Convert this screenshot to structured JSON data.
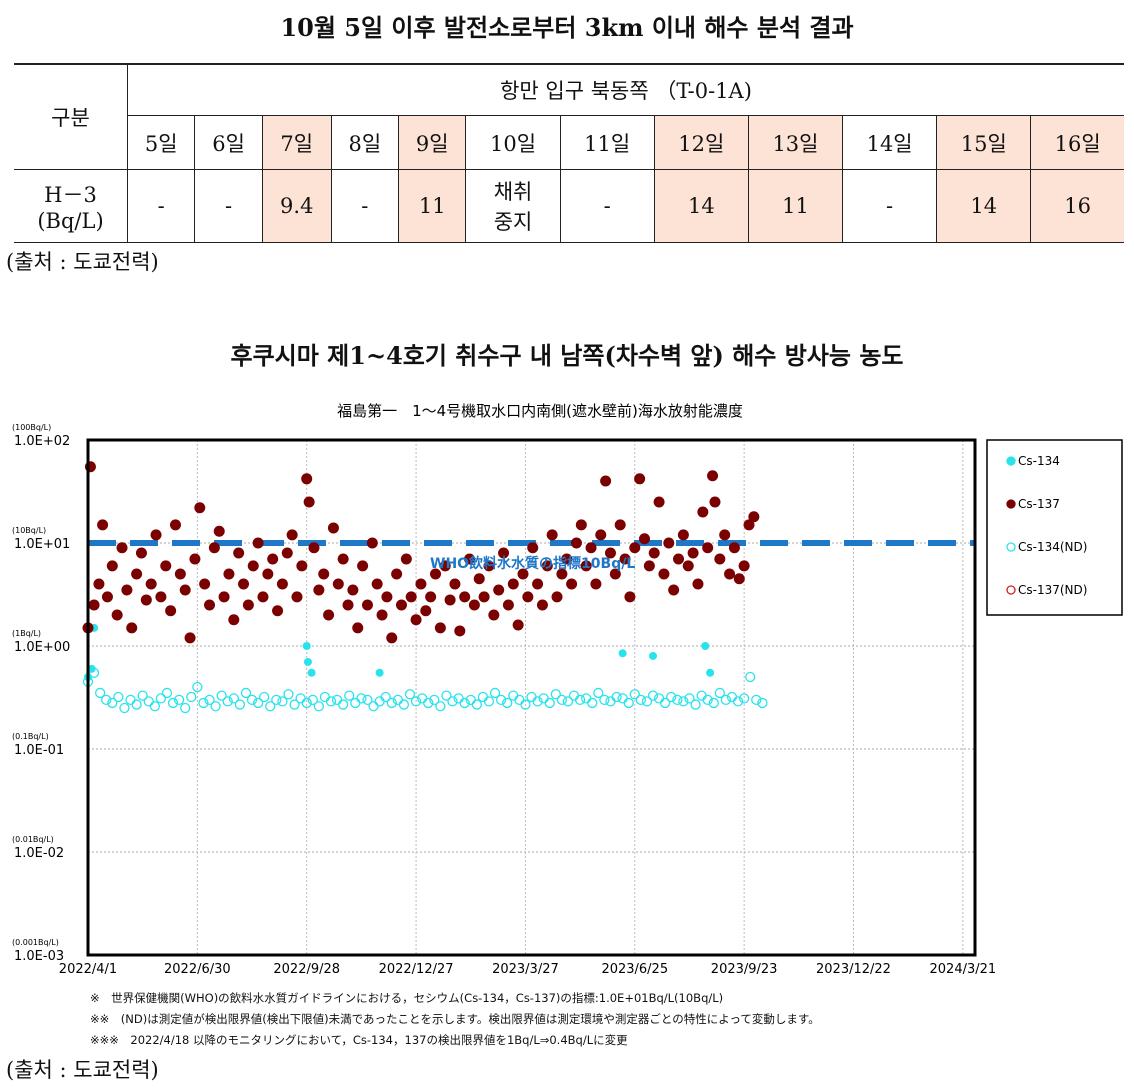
{
  "table_title": "10월 5일 이후 발전소로부터 3km 이내 해수 분석 결과",
  "table": {
    "row_header": "구분",
    "location": "항만 입구 북동쪽 （T-0-1A)",
    "dates": [
      "5일",
      "6일",
      "7일",
      "8일",
      "9일",
      "10일",
      "11일",
      "12일",
      "13일",
      "14일",
      "15일",
      "16일"
    ],
    "highlighted": [
      false,
      false,
      true,
      false,
      true,
      false,
      false,
      true,
      true,
      false,
      true,
      true
    ],
    "row_label_1": "H－3",
    "row_label_2": "(Bq/L)",
    "values": [
      "-",
      "-",
      "9.4",
      "-",
      "11",
      "채취\n중지",
      "-",
      "14",
      "11",
      "-",
      "14",
      "16"
    ]
  },
  "source1": "(출처 : 도쿄전력)",
  "chart_heading": "후쿠시마 제1~4호기 취수구 내 남쪽(차수벽 앞) 해수 방사능 농도",
  "chart_data": {
    "type": "scatter",
    "title": "福島第一　1～4号機取水口内南側(遮水壁前)海水放射能濃度",
    "y_scale": "log",
    "ylim": [
      0.001,
      100
    ],
    "y_ticks": [
      {
        "v": 100,
        "label": "1.0E+02",
        "unit": "(100Bq/L)"
      },
      {
        "v": 10,
        "label": "1.0E+01",
        "unit": "(10Bq/L)"
      },
      {
        "v": 1,
        "label": "1.0E+00",
        "unit": "(1Bq/L)"
      },
      {
        "v": 0.1,
        "label": "1.0E-01",
        "unit": "(0.1Bq/L)"
      },
      {
        "v": 0.01,
        "label": "1.0E-02",
        "unit": "(0.01Bq/L)"
      },
      {
        "v": 0.001,
        "label": "1.0E-03",
        "unit": "(0.001Bq/L)"
      }
    ],
    "x_unit": "days since 2022/4/1",
    "xlim": [
      0,
      730
    ],
    "x_ticks": [
      {
        "d": 0,
        "label": "2022/4/1"
      },
      {
        "d": 90,
        "label": "2022/6/30"
      },
      {
        "d": 180,
        "label": "2022/9/28"
      },
      {
        "d": 270,
        "label": "2022/12/27"
      },
      {
        "d": 360,
        "label": "2023/3/27"
      },
      {
        "d": 450,
        "label": "2023/6/25"
      },
      {
        "d": 540,
        "label": "2023/9/23"
      },
      {
        "d": 630,
        "label": "2023/12/22"
      },
      {
        "d": 720,
        "label": "2024/3/21"
      }
    ],
    "reference_line": {
      "value": 10,
      "label": "WHO飲料水水質の指標10Bq/L",
      "color": "#1f77c8"
    },
    "legend": [
      {
        "name": "Cs-134",
        "color": "#29e3ec",
        "fill": true
      },
      {
        "name": "Cs-137",
        "color": "#7b0000",
        "fill": true
      },
      {
        "name": "Cs-134(ND)",
        "color": "#29e3ec",
        "fill": false
      },
      {
        "name": "Cs-137(ND)",
        "color": "#d02020",
        "fill": false
      }
    ],
    "series": {
      "cs137": [
        [
          0,
          1.5
        ],
        [
          2,
          55
        ],
        [
          5,
          2.5
        ],
        [
          9,
          4
        ],
        [
          12,
          15
        ],
        [
          16,
          3
        ],
        [
          20,
          6
        ],
        [
          24,
          2
        ],
        [
          28,
          9
        ],
        [
          32,
          3.5
        ],
        [
          36,
          1.5
        ],
        [
          40,
          5
        ],
        [
          44,
          8
        ],
        [
          48,
          2.8
        ],
        [
          52,
          4
        ],
        [
          56,
          12
        ],
        [
          60,
          3
        ],
        [
          64,
          6
        ],
        [
          68,
          2.2
        ],
        [
          72,
          15
        ],
        [
          76,
          5
        ],
        [
          80,
          3.5
        ],
        [
          84,
          1.2
        ],
        [
          88,
          7
        ],
        [
          92,
          22
        ],
        [
          96,
          4
        ],
        [
          100,
          2.5
        ],
        [
          104,
          9
        ],
        [
          108,
          13
        ],
        [
          112,
          3
        ],
        [
          116,
          5
        ],
        [
          120,
          1.8
        ],
        [
          124,
          8
        ],
        [
          128,
          4
        ],
        [
          132,
          2.5
        ],
        [
          136,
          6
        ],
        [
          140,
          10
        ],
        [
          144,
          3
        ],
        [
          148,
          5
        ],
        [
          152,
          7
        ],
        [
          156,
          2.2
        ],
        [
          160,
          4
        ],
        [
          164,
          8
        ],
        [
          168,
          12
        ],
        [
          172,
          3
        ],
        [
          176,
          6
        ],
        [
          180,
          42
        ],
        [
          182,
          25
        ],
        [
          186,
          9
        ],
        [
          190,
          3.5
        ],
        [
          194,
          5
        ],
        [
          198,
          2
        ],
        [
          202,
          14
        ],
        [
          206,
          4
        ],
        [
          210,
          7
        ],
        [
          214,
          2.5
        ],
        [
          218,
          3.5
        ],
        [
          222,
          1.5
        ],
        [
          226,
          6
        ],
        [
          230,
          2.5
        ],
        [
          234,
          10
        ],
        [
          238,
          4
        ],
        [
          242,
          2
        ],
        [
          246,
          3
        ],
        [
          250,
          1.2
        ],
        [
          254,
          5
        ],
        [
          258,
          2.5
        ],
        [
          262,
          7
        ],
        [
          266,
          3
        ],
        [
          270,
          1.8
        ],
        [
          274,
          4
        ],
        [
          278,
          2.2
        ],
        [
          282,
          3
        ],
        [
          286,
          5
        ],
        [
          290,
          1.5
        ],
        [
          294,
          6
        ],
        [
          298,
          2.8
        ],
        [
          302,
          4
        ],
        [
          306,
          1.4
        ],
        [
          310,
          3
        ],
        [
          314,
          7
        ],
        [
          318,
          2.5
        ],
        [
          322,
          4.5
        ],
        [
          326,
          3
        ],
        [
          330,
          6
        ],
        [
          334,
          2
        ],
        [
          338,
          3.5
        ],
        [
          342,
          8
        ],
        [
          346,
          2.5
        ],
        [
          350,
          4
        ],
        [
          354,
          1.6
        ],
        [
          358,
          5
        ],
        [
          362,
          3
        ],
        [
          366,
          9
        ],
        [
          370,
          4
        ],
        [
          374,
          2.5
        ],
        [
          378,
          6
        ],
        [
          382,
          12
        ],
        [
          386,
          3
        ],
        [
          390,
          5
        ],
        [
          394,
          7
        ],
        [
          398,
          4
        ],
        [
          402,
          10
        ],
        [
          406,
          15
        ],
        [
          410,
          6
        ],
        [
          414,
          9
        ],
        [
          418,
          4
        ],
        [
          422,
          12
        ],
        [
          426,
          40
        ],
        [
          430,
          8
        ],
        [
          434,
          5
        ],
        [
          438,
          15
        ],
        [
          442,
          7
        ],
        [
          446,
          3
        ],
        [
          450,
          9
        ],
        [
          454,
          42
        ],
        [
          458,
          11
        ],
        [
          462,
          6
        ],
        [
          466,
          8
        ],
        [
          470,
          25
        ],
        [
          474,
          5
        ],
        [
          478,
          10
        ],
        [
          482,
          3.5
        ],
        [
          486,
          7
        ],
        [
          490,
          12
        ],
        [
          494,
          6
        ],
        [
          498,
          8
        ],
        [
          502,
          4
        ],
        [
          506,
          20
        ],
        [
          510,
          9
        ],
        [
          514,
          45
        ],
        [
          516,
          25
        ],
        [
          520,
          7
        ],
        [
          524,
          12
        ],
        [
          528,
          5
        ],
        [
          532,
          9
        ],
        [
          536,
          4.5
        ],
        [
          540,
          6
        ],
        [
          544,
          15
        ],
        [
          548,
          18
        ]
      ],
      "cs134": [
        [
          0,
          0.5
        ],
        [
          3,
          0.6
        ],
        [
          5,
          1.5
        ],
        [
          180,
          1.0
        ],
        [
          181,
          0.7
        ],
        [
          184,
          0.55
        ],
        [
          240,
          0.55
        ],
        [
          440,
          0.85
        ],
        [
          465,
          0.8
        ],
        [
          508,
          1.0
        ],
        [
          512,
          0.55
        ]
      ],
      "cs134_nd": {
        "start_day": 0,
        "step_days": 5,
        "values": [
          0.45,
          0.55,
          0.35,
          0.3,
          0.28,
          0.32,
          0.25,
          0.3,
          0.27,
          0.33,
          0.29,
          0.26,
          0.31,
          0.35,
          0.28,
          0.3,
          0.25,
          0.32,
          0.4,
          0.28,
          0.3,
          0.26,
          0.33,
          0.29,
          0.31,
          0.27,
          0.35,
          0.3,
          0.28,
          0.32,
          0.26,
          0.3,
          0.29,
          0.34,
          0.27,
          0.31,
          0.28,
          0.3,
          0.26,
          0.32,
          0.29,
          0.3,
          0.27,
          0.33,
          0.28,
          0.31,
          0.3,
          0.26,
          0.29,
          0.32,
          0.28,
          0.3,
          0.27,
          0.34,
          0.29,
          0.31,
          0.28,
          0.3,
          0.26,
          0.33,
          0.29,
          0.31,
          0.28,
          0.3,
          0.27,
          0.32,
          0.29,
          0.35,
          0.3,
          0.28,
          0.33,
          0.3,
          0.27,
          0.32,
          0.29,
          0.31,
          0.28,
          0.34,
          0.3,
          0.29,
          0.33,
          0.3,
          0.31,
          0.28,
          0.35,
          0.3,
          0.29,
          0.32,
          0.31,
          0.28,
          0.34,
          0.3,
          0.29,
          0.33,
          0.31,
          0.28,
          0.32,
          0.3,
          0.29,
          0.31,
          0.27,
          0.33,
          0.3,
          0.28,
          0.35,
          0.3,
          0.32,
          0.29,
          0.31,
          0.5,
          0.3,
          0.28
        ]
      }
    }
  },
  "notes": [
    "※　世界保健機関(WHO)の飲料水水質ガイドラインにおける，セシウム(Cs-134，Cs-137)の指標:1.0E+01Bq/L(10Bq/L)",
    "※※　(ND)は測定値が検出限界値(検出下限値)未満であったことを示します。検出限界値は測定環境や測定器ごとの特性によって変動します。",
    "※※※　2022/4/18 以降のモニタリングにおいて，Cs-134，137の検出限界値を1Bq/L⇒0.4Bq/Lに変更"
  ],
  "source2": "(출처 : 도쿄전력)"
}
